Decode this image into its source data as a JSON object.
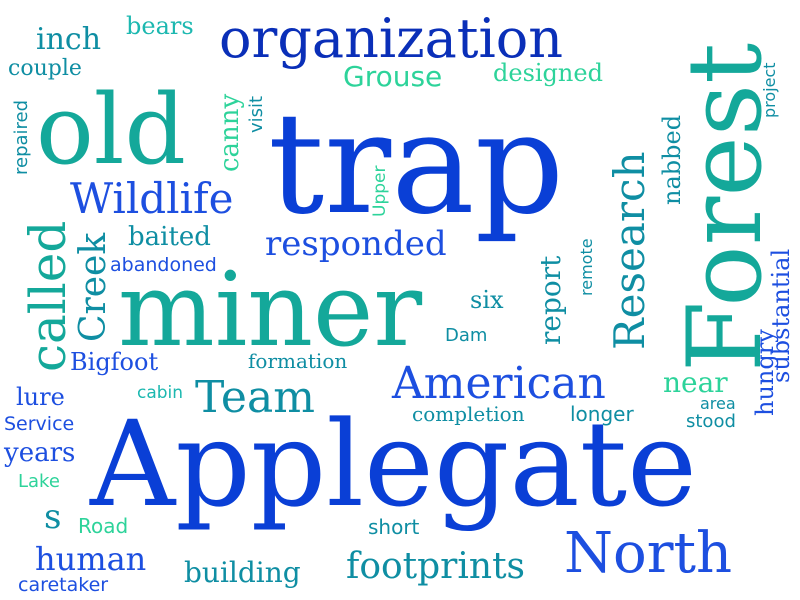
{
  "palette": {
    "blue": "#0a3fd6",
    "royal": "#1d4fe0",
    "teal": "#0f8ea3",
    "sea": "#14a89a",
    "mint": "#2dd39a",
    "aqua": "#1cb8b0",
    "navy": "#0a2fb8"
  },
  "words": [
    {
      "text": "Applegate",
      "color": "blue"
    },
    {
      "text": "trap",
      "color": "blue"
    },
    {
      "text": "miner",
      "color": "sea"
    },
    {
      "text": "old",
      "color": "sea"
    },
    {
      "text": "Forest",
      "color": "sea"
    },
    {
      "text": "organization",
      "color": "navy"
    },
    {
      "text": "North",
      "color": "royal"
    },
    {
      "text": "American",
      "color": "royal"
    },
    {
      "text": "called",
      "color": "sea"
    },
    {
      "text": "Research",
      "color": "teal"
    },
    {
      "text": "Wildlife",
      "color": "royal"
    },
    {
      "text": "Team",
      "color": "teal"
    },
    {
      "text": "responded",
      "color": "royal"
    },
    {
      "text": "footprints",
      "color": "teal"
    },
    {
      "text": "human",
      "color": "royal"
    },
    {
      "text": "Creek",
      "color": "teal"
    },
    {
      "text": "Grouse",
      "color": "mint"
    },
    {
      "text": "inch",
      "color": "teal"
    },
    {
      "text": "bears",
      "color": "aqua"
    },
    {
      "text": "couple",
      "color": "teal"
    },
    {
      "text": "designed",
      "color": "mint"
    },
    {
      "text": "canny",
      "color": "mint"
    },
    {
      "text": "visit",
      "color": "teal"
    },
    {
      "text": "project",
      "color": "teal"
    },
    {
      "text": "repaired",
      "color": "teal"
    },
    {
      "text": "Upper",
      "color": "mint"
    },
    {
      "text": "nabbed",
      "color": "teal"
    },
    {
      "text": "substantial",
      "color": "royal"
    },
    {
      "text": "hungry",
      "color": "royal"
    },
    {
      "text": "baited",
      "color": "teal"
    },
    {
      "text": "abandoned",
      "color": "royal"
    },
    {
      "text": "report",
      "color": "teal"
    },
    {
      "text": "remote",
      "color": "teal"
    },
    {
      "text": "six",
      "color": "teal"
    },
    {
      "text": "Dam",
      "color": "teal"
    },
    {
      "text": "Bigfoot",
      "color": "royal"
    },
    {
      "text": "formation",
      "color": "teal"
    },
    {
      "text": "cabin",
      "color": "aqua"
    },
    {
      "text": "lure",
      "color": "royal"
    },
    {
      "text": "Service",
      "color": "royal"
    },
    {
      "text": "years",
      "color": "royal"
    },
    {
      "text": "Lake",
      "color": "mint"
    },
    {
      "text": "s",
      "color": "teal"
    },
    {
      "text": "Road",
      "color": "mint"
    },
    {
      "text": "short",
      "color": "teal"
    },
    {
      "text": "building",
      "color": "teal"
    },
    {
      "text": "caretaker",
      "color": "royal"
    },
    {
      "text": "completion",
      "color": "teal"
    },
    {
      "text": "longer",
      "color": "teal"
    },
    {
      "text": "near",
      "color": "mint"
    },
    {
      "text": "area",
      "color": "teal"
    },
    {
      "text": "stood",
      "color": "teal"
    }
  ]
}
